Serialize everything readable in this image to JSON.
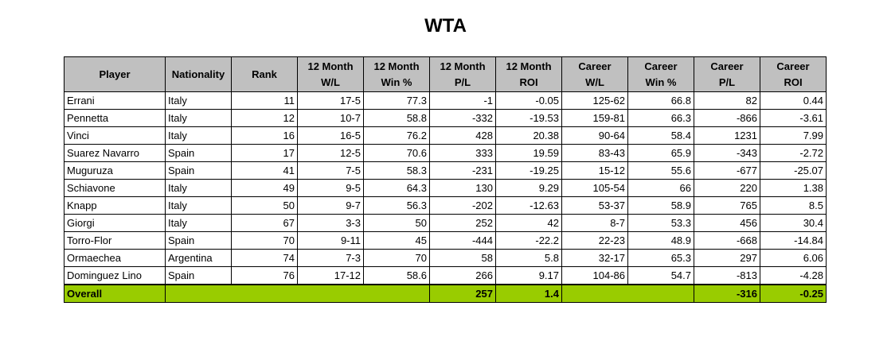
{
  "title": "WTA",
  "chart_data": {
    "type": "table",
    "columns": [
      [
        "Player"
      ],
      [
        "Nationality"
      ],
      [
        "Rank"
      ],
      [
        "12 Month",
        "W/L"
      ],
      [
        "12 Month",
        "Win %"
      ],
      [
        "12 Month",
        "P/L"
      ],
      [
        "12 Month",
        "ROI"
      ],
      [
        "Career",
        "W/L"
      ],
      [
        "Career",
        "Win %"
      ],
      [
        "Career",
        "P/L"
      ],
      [
        "Career",
        "ROI"
      ]
    ],
    "rows": [
      [
        "Errani",
        "Italy",
        "11",
        "17-5",
        "77.3",
        "-1",
        "-0.05",
        "125-62",
        "66.8",
        "82",
        "0.44"
      ],
      [
        "Pennetta",
        "Italy",
        "12",
        "10-7",
        "58.8",
        "-332",
        "-19.53",
        "159-81",
        "66.3",
        "-866",
        "-3.61"
      ],
      [
        "Vinci",
        "Italy",
        "16",
        "16-5",
        "76.2",
        "428",
        "20.38",
        "90-64",
        "58.4",
        "1231",
        "7.99"
      ],
      [
        "Suarez Navarro",
        "Spain",
        "17",
        "12-5",
        "70.6",
        "333",
        "19.59",
        "83-43",
        "65.9",
        "-343",
        "-2.72"
      ],
      [
        "Muguruza",
        "Spain",
        "41",
        "7-5",
        "58.3",
        "-231",
        "-19.25",
        "15-12",
        "55.6",
        "-677",
        "-25.07"
      ],
      [
        "Schiavone",
        "Italy",
        "49",
        "9-5",
        "64.3",
        "130",
        "9.29",
        "105-54",
        "66",
        "220",
        "1.38"
      ],
      [
        "Knapp",
        "Italy",
        "50",
        "9-7",
        "56.3",
        "-202",
        "-12.63",
        "53-37",
        "58.9",
        "765",
        "8.5"
      ],
      [
        "Giorgi",
        "Italy",
        "67",
        "3-3",
        "50",
        "252",
        "42",
        "8-7",
        "53.3",
        "456",
        "30.4"
      ],
      [
        "Torro-Flor",
        "Spain",
        "70",
        "9-11",
        "45",
        "-444",
        "-22.2",
        "22-23",
        "48.9",
        "-668",
        "-14.84"
      ],
      [
        "Ormaechea",
        "Argentina",
        "74",
        "7-3",
        "70",
        "58",
        "5.8",
        "32-17",
        "65.3",
        "297",
        "6.06"
      ],
      [
        "Dominguez Lino",
        "Spain",
        "76",
        "17-12",
        "58.6",
        "266",
        "9.17",
        "104-86",
        "54.7",
        "-813",
        "-4.28"
      ]
    ],
    "overall": {
      "label": "Overall",
      "pl_12m": "257",
      "roi_12m": "1.4",
      "pl_career": "-316",
      "roi_career": "-0.25"
    },
    "colors": {
      "header_bg": "#c0c0c0",
      "overall_bg": "#99cc00"
    }
  }
}
